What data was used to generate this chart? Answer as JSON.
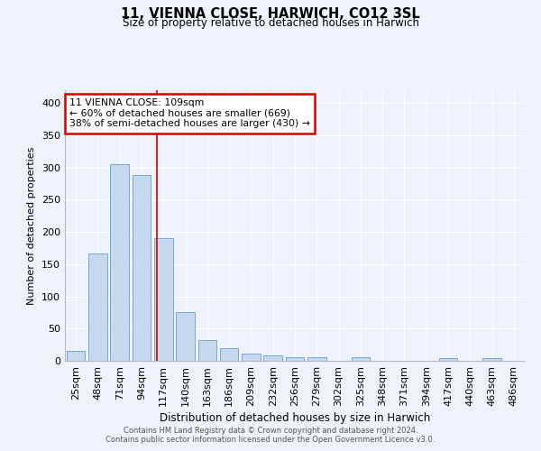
{
  "title": "11, VIENNA CLOSE, HARWICH, CO12 3SL",
  "subtitle": "Size of property relative to detached houses in Harwich",
  "xlabel": "Distribution of detached houses by size in Harwich",
  "ylabel": "Number of detached properties",
  "categories": [
    "25sqm",
    "48sqm",
    "71sqm",
    "94sqm",
    "117sqm",
    "140sqm",
    "163sqm",
    "186sqm",
    "209sqm",
    "232sqm",
    "256sqm",
    "279sqm",
    "302sqm",
    "325sqm",
    "348sqm",
    "371sqm",
    "394sqm",
    "417sqm",
    "440sqm",
    "463sqm",
    "486sqm"
  ],
  "values": [
    15,
    167,
    305,
    288,
    190,
    75,
    32,
    19,
    11,
    8,
    6,
    6,
    0,
    5,
    0,
    0,
    0,
    4,
    0,
    4,
    0
  ],
  "bar_color": "#c5d8f0",
  "bar_edge_color": "#7aA8d0",
  "background_color": "#eef2fb",
  "grid_color": "#ffffff",
  "annotation_text_line1": "11 VIENNA CLOSE: 109sqm",
  "annotation_text_line2": "← 60% of detached houses are smaller (669)",
  "annotation_text_line3": "38% of semi-detached houses are larger (430) →",
  "annotation_box_color": "#ffffff",
  "annotation_box_edge": "#cc0000",
  "vline_color": "#cc0000",
  "vline_x": 3.68,
  "ylim": [
    0,
    420
  ],
  "yticks": [
    0,
    50,
    100,
    150,
    200,
    250,
    300,
    350,
    400
  ],
  "footer_line1": "Contains HM Land Registry data © Crown copyright and database right 2024.",
  "footer_line2": "Contains public sector information licensed under the Open Government Licence v3.0."
}
